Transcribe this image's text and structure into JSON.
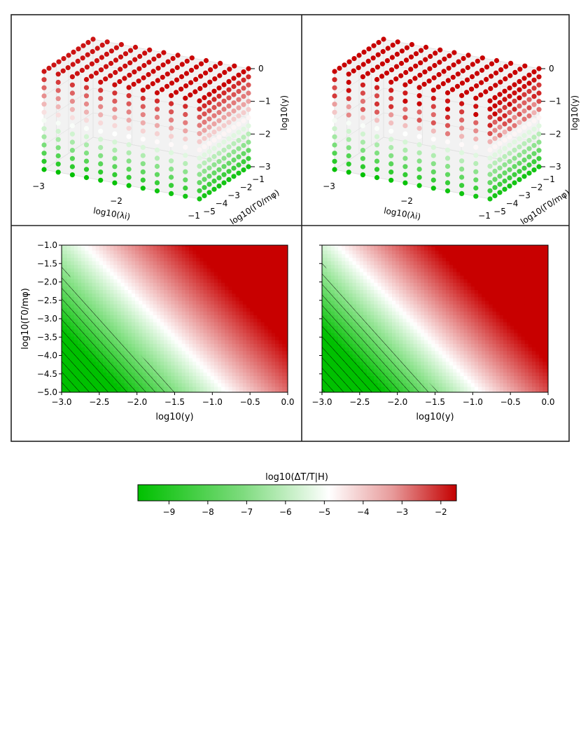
{
  "colorscale": {
    "low": "#00c000",
    "mid": "#ffffff",
    "high": "#c80000"
  },
  "panels3d": [
    {
      "x_label": "log10(λi)",
      "y_label": "log10(Γ0/mφ)",
      "z_label": "log10(y)",
      "x_ticks": [
        "−3",
        "−2",
        "−1"
      ],
      "y_ticks": [
        "−5",
        "−4",
        "−3",
        "−2",
        "−1"
      ],
      "z_ticks": [
        "0",
        "−1",
        "−2",
        "−3"
      ]
    },
    {
      "x_label": "log10(λi)",
      "y_label": "log10(Γ0/mφ)",
      "z_label": "log10(y)",
      "x_ticks": [
        "−3",
        "−2",
        "−1"
      ],
      "y_ticks": [
        "−5",
        "−4",
        "−3",
        "−2",
        "−1"
      ],
      "z_ticks": [
        "0",
        "−1",
        "−2",
        "−3"
      ]
    }
  ],
  "panels2d": [
    {
      "x_label": "log10(y)",
      "y_label": "log10(Γ0/mφ)",
      "x_ticks": [
        "−3.0",
        "−2.5",
        "−2.0",
        "−1.5",
        "−1.0",
        "−0.5",
        "0.0"
      ],
      "y_ticks": [
        "−1.0",
        "−1.5",
        "−2.0",
        "−2.5",
        "−3.0",
        "−3.5",
        "−4.0",
        "−4.5",
        "−5.0"
      ],
      "show_y_labels": true
    },
    {
      "x_label": "log10(y)",
      "y_label": "",
      "x_ticks": [
        "−3.0",
        "−2.5",
        "−2.0",
        "−1.5",
        "−1.0",
        "−0.5",
        "0.0"
      ],
      "y_ticks": [],
      "show_y_labels": false
    }
  ],
  "colorbar": {
    "label": "log10(ΔT/T|H)",
    "ticks": [
      "−9",
      "−8",
      "−7",
      "−6",
      "−5",
      "−4",
      "−3",
      "−2"
    ]
  },
  "chart_data": [
    {
      "type": "scatter",
      "title": "",
      "xlabel": "log10(λi)",
      "ylabel": "log10(Γ0/mφ)",
      "zlabel": "log10(y)",
      "xlim": [
        -3,
        -1
      ],
      "ylim": [
        -5,
        -1
      ],
      "zlim": [
        -3,
        0
      ],
      "grid": true,
      "color_variable": "log10(ΔT/T|H)"
    },
    {
      "type": "scatter",
      "title": "",
      "xlabel": "log10(λi)",
      "ylabel": "log10(Γ0/mφ)",
      "zlabel": "log10(y)",
      "xlim": [
        -3,
        -1
      ],
      "ylim": [
        -5,
        -1
      ],
      "zlim": [
        -3,
        0
      ],
      "grid": true,
      "color_variable": "log10(ΔT/T|H)"
    },
    {
      "type": "heatmap",
      "title": "",
      "xlabel": "log10(y)",
      "ylabel": "log10(Γ0/mφ)",
      "xlim": [
        -3.0,
        0.0
      ],
      "ylim": [
        -5.0,
        -1.0
      ],
      "color_variable": "log10(ΔT/T|H)",
      "excluded_region_hatched": "lower-left"
    },
    {
      "type": "heatmap",
      "title": "",
      "xlabel": "log10(y)",
      "ylabel": "",
      "xlim": [
        -3.0,
        0.0
      ],
      "ylim": [
        -5.0,
        -1.0
      ],
      "color_variable": "log10(ΔT/T|H)",
      "excluded_region_hatched": "lower-left"
    },
    {
      "type": "heatmap",
      "title": "colorbar",
      "xlabel": "log10(ΔT/T|H)",
      "xlim": [
        -9.8,
        -1.6
      ],
      "ticks": [
        -9,
        -8,
        -7,
        -6,
        -5,
        -4,
        -3,
        -2
      ]
    }
  ]
}
